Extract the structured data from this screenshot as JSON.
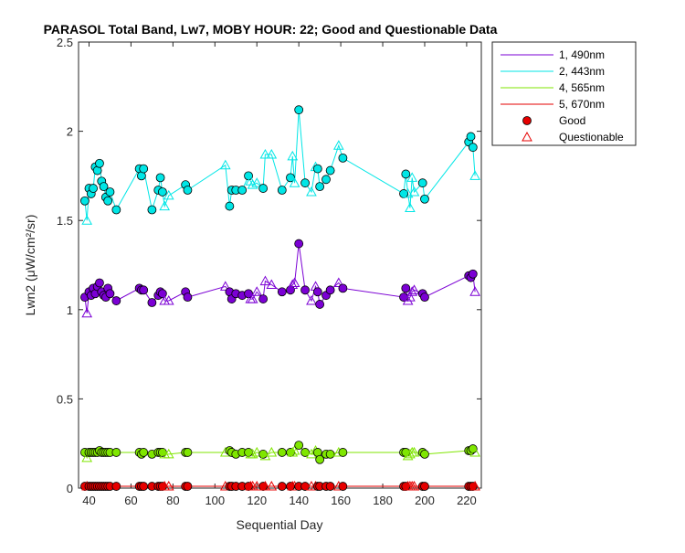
{
  "chart_data": {
    "type": "line",
    "title": "PARASOL Total Band, Lw7, MOBY HOUR: 22;  Good and Questionable Data",
    "xlabel": "Sequential Day",
    "ylabel": "Lwn2 (μW/cm²/sr)",
    "xlim": [
      35,
      227
    ],
    "ylim": [
      0,
      2.5
    ],
    "xticks": [
      40,
      60,
      80,
      100,
      120,
      140,
      160,
      180,
      200,
      220
    ],
    "yticks": [
      0,
      0.5,
      1,
      1.5,
      2,
      2.5
    ],
    "ytick_labels": [
      "0",
      "0.5",
      "1",
      "1.5",
      "2",
      "2.5"
    ],
    "grid": false,
    "legend_position": "outside-right-top",
    "series": [
      {
        "name": "1, 490nm",
        "color": "#7b00d4",
        "x": [
          38,
          39,
          40,
          41,
          42,
          43,
          44,
          45,
          46,
          47,
          48,
          49,
          50,
          53,
          64,
          65,
          66,
          70,
          73,
          74,
          75,
          76,
          78,
          86,
          87,
          105,
          107,
          108,
          110,
          113,
          116,
          117,
          118,
          120,
          123,
          124,
          127,
          132,
          136,
          137,
          138,
          140,
          143,
          146,
          148,
          149,
          150,
          153,
          155,
          159,
          161,
          190,
          191,
          192,
          193,
          194,
          195,
          199,
          200,
          221,
          222,
          223,
          224
        ],
        "y": [
          1.07,
          0.98,
          1.1,
          1.08,
          1.12,
          1.09,
          1.13,
          1.15,
          1.1,
          1.08,
          1.07,
          1.12,
          1.09,
          1.05,
          1.12,
          1.11,
          1.11,
          1.04,
          1.08,
          1.1,
          1.09,
          1.05,
          1.05,
          1.1,
          1.07,
          1.13,
          1.1,
          1.06,
          1.09,
          1.08,
          1.09,
          1.06,
          1.06,
          1.1,
          1.06,
          1.16,
          1.14,
          1.1,
          1.11,
          1.14,
          1.15,
          1.37,
          1.11,
          1.05,
          1.13,
          1.1,
          1.03,
          1.08,
          1.11,
          1.15,
          1.12,
          1.07,
          1.12,
          1.05,
          1.07,
          1.1,
          1.11,
          1.09,
          1.07,
          1.19,
          1.18,
          1.2,
          1.1
        ],
        "quality": [
          "G",
          "Q",
          "G",
          "G",
          "G",
          "G",
          "G",
          "G",
          "G",
          "G",
          "G",
          "G",
          "G",
          "G",
          "G",
          "G",
          "G",
          "G",
          "G",
          "G",
          "G",
          "Q",
          "Q",
          "G",
          "G",
          "Q",
          "G",
          "G",
          "G",
          "G",
          "G",
          "Q",
          "Q",
          "Q",
          "G",
          "Q",
          "Q",
          "G",
          "G",
          "Q",
          "Q",
          "G",
          "G",
          "Q",
          "Q",
          "G",
          "G",
          "G",
          "G",
          "Q",
          "G",
          "G",
          "G",
          "Q",
          "Q",
          "Q",
          "Q",
          "G",
          "G",
          "G",
          "G",
          "G",
          "Q"
        ]
      },
      {
        "name": "2, 443nm",
        "color": "#00e6e6",
        "x": [
          38,
          39,
          40,
          41,
          42,
          43,
          44,
          45,
          46,
          47,
          48,
          49,
          50,
          53,
          64,
          65,
          66,
          70,
          73,
          74,
          75,
          76,
          78,
          86,
          87,
          105,
          107,
          108,
          110,
          113,
          116,
          117,
          118,
          120,
          123,
          124,
          127,
          132,
          136,
          137,
          138,
          140,
          143,
          146,
          148,
          149,
          150,
          153,
          155,
          159,
          161,
          190,
          191,
          192,
          193,
          194,
          195,
          199,
          200,
          221,
          222,
          223,
          224
        ],
        "y": [
          1.61,
          1.5,
          1.68,
          1.65,
          1.68,
          1.8,
          1.78,
          1.82,
          1.72,
          1.69,
          1.63,
          1.61,
          1.66,
          1.56,
          1.79,
          1.75,
          1.79,
          1.56,
          1.67,
          1.74,
          1.66,
          1.58,
          1.64,
          1.7,
          1.67,
          1.81,
          1.58,
          1.67,
          1.67,
          1.67,
          1.75,
          1.72,
          1.7,
          1.71,
          1.68,
          1.87,
          1.87,
          1.67,
          1.74,
          1.86,
          1.71,
          2.12,
          1.71,
          1.66,
          1.8,
          1.79,
          1.69,
          1.73,
          1.78,
          1.92,
          1.85,
          1.65,
          1.76,
          1.65,
          1.57,
          1.74,
          1.66,
          1.71,
          1.62,
          1.94,
          1.97,
          1.91,
          1.75
        ],
        "quality": [
          "G",
          "Q",
          "G",
          "G",
          "G",
          "G",
          "G",
          "G",
          "G",
          "G",
          "G",
          "G",
          "G",
          "G",
          "G",
          "G",
          "G",
          "G",
          "G",
          "G",
          "G",
          "Q",
          "Q",
          "G",
          "G",
          "Q",
          "G",
          "G",
          "G",
          "G",
          "G",
          "Q",
          "Q",
          "Q",
          "G",
          "Q",
          "Q",
          "G",
          "G",
          "Q",
          "Q",
          "G",
          "G",
          "Q",
          "Q",
          "G",
          "G",
          "G",
          "G",
          "Q",
          "G",
          "G",
          "G",
          "Q",
          "Q",
          "Q",
          "Q",
          "G",
          "G",
          "G",
          "G",
          "G",
          "Q"
        ]
      },
      {
        "name": "4, 565nm",
        "color": "#7fe600",
        "x": [
          38,
          39,
          40,
          41,
          42,
          43,
          44,
          45,
          46,
          47,
          48,
          49,
          50,
          53,
          64,
          65,
          66,
          70,
          73,
          74,
          75,
          76,
          78,
          86,
          87,
          105,
          107,
          108,
          110,
          113,
          116,
          117,
          118,
          120,
          123,
          124,
          127,
          132,
          136,
          137,
          138,
          140,
          143,
          146,
          148,
          149,
          150,
          153,
          155,
          159,
          161,
          190,
          191,
          192,
          193,
          194,
          195,
          199,
          200,
          221,
          222,
          223,
          224
        ],
        "y": [
          0.2,
          0.17,
          0.2,
          0.2,
          0.2,
          0.2,
          0.2,
          0.21,
          0.2,
          0.2,
          0.2,
          0.2,
          0.2,
          0.2,
          0.2,
          0.19,
          0.2,
          0.19,
          0.2,
          0.2,
          0.2,
          0.19,
          0.19,
          0.2,
          0.2,
          0.2,
          0.21,
          0.2,
          0.19,
          0.2,
          0.2,
          0.19,
          0.19,
          0.2,
          0.19,
          0.18,
          0.2,
          0.2,
          0.2,
          0.2,
          0.21,
          0.24,
          0.2,
          0.19,
          0.21,
          0.2,
          0.16,
          0.19,
          0.19,
          0.2,
          0.2,
          0.2,
          0.2,
          0.18,
          0.19,
          0.2,
          0.2,
          0.2,
          0.19,
          0.21,
          0.21,
          0.22,
          0.2
        ],
        "quality": [
          "G",
          "Q",
          "G",
          "G",
          "G",
          "G",
          "G",
          "G",
          "G",
          "G",
          "G",
          "G",
          "G",
          "G",
          "G",
          "G",
          "G",
          "G",
          "G",
          "G",
          "G",
          "Q",
          "Q",
          "G",
          "G",
          "Q",
          "G",
          "G",
          "G",
          "G",
          "G",
          "Q",
          "Q",
          "Q",
          "G",
          "Q",
          "Q",
          "G",
          "G",
          "Q",
          "Q",
          "G",
          "G",
          "Q",
          "Q",
          "G",
          "G",
          "G",
          "G",
          "Q",
          "G",
          "G",
          "G",
          "Q",
          "Q",
          "Q",
          "Q",
          "G",
          "G",
          "G",
          "G",
          "G",
          "Q"
        ]
      },
      {
        "name": "5, 670nm",
        "color": "#e60000",
        "x": [
          38,
          39,
          40,
          41,
          42,
          43,
          44,
          45,
          46,
          47,
          48,
          49,
          50,
          53,
          64,
          65,
          66,
          70,
          73,
          74,
          75,
          76,
          78,
          86,
          87,
          105,
          107,
          108,
          110,
          113,
          116,
          117,
          118,
          120,
          123,
          124,
          127,
          132,
          136,
          137,
          138,
          140,
          143,
          146,
          148,
          149,
          150,
          153,
          155,
          159,
          161,
          190,
          191,
          192,
          193,
          194,
          195,
          199,
          200,
          221,
          222,
          223,
          224
        ],
        "y": [
          0.01,
          0.01,
          0.01,
          0.01,
          0.01,
          0.01,
          0.01,
          0.01,
          0.01,
          0.01,
          0.01,
          0.01,
          0.01,
          0.01,
          0.01,
          0.01,
          0.01,
          0.01,
          0.01,
          0.01,
          0.01,
          0.01,
          0.01,
          0.01,
          0.01,
          0.01,
          0.01,
          0.01,
          0.01,
          0.01,
          0.01,
          0.01,
          0.01,
          0.01,
          0.01,
          0.01,
          0.01,
          0.01,
          0.01,
          0.01,
          0.01,
          0.01,
          0.01,
          0.01,
          0.01,
          0.01,
          0.01,
          0.01,
          0.01,
          0.01,
          0.01,
          0.01,
          0.01,
          0.01,
          0.01,
          0.01,
          0.01,
          0.01,
          0.01,
          0.01,
          0.01,
          0.01,
          0.01
        ],
        "quality": [
          "G",
          "Q",
          "G",
          "G",
          "G",
          "G",
          "G",
          "G",
          "G",
          "G",
          "G",
          "G",
          "G",
          "G",
          "G",
          "G",
          "G",
          "G",
          "G",
          "G",
          "G",
          "Q",
          "Q",
          "G",
          "G",
          "Q",
          "G",
          "G",
          "G",
          "G",
          "G",
          "Q",
          "Q",
          "Q",
          "G",
          "Q",
          "Q",
          "G",
          "G",
          "Q",
          "Q",
          "G",
          "G",
          "Q",
          "Q",
          "G",
          "G",
          "G",
          "G",
          "Q",
          "G",
          "G",
          "G",
          "Q",
          "Q",
          "Q",
          "Q",
          "G",
          "G",
          "G",
          "G",
          "G",
          "Q"
        ]
      }
    ],
    "markers": [
      {
        "name": "Good",
        "shape": "circle",
        "color": "#e60000"
      },
      {
        "name": "Questionable",
        "shape": "triangle",
        "color": "#e60000"
      }
    ]
  }
}
